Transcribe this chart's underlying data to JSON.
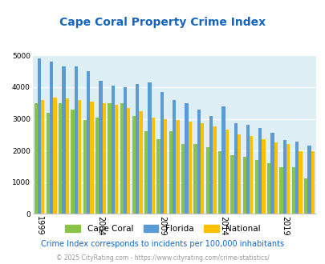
{
  "title": "Cape Coral Property Crime Index",
  "years": [
    1999,
    2000,
    2001,
    2002,
    2003,
    2004,
    2005,
    2006,
    2007,
    2008,
    2009,
    2010,
    2011,
    2012,
    2013,
    2014,
    2015,
    2016,
    2017,
    2018,
    2019,
    2020,
    2021
  ],
  "cape_coral": [
    3500,
    3200,
    3500,
    3300,
    2950,
    3050,
    3500,
    3500,
    3100,
    2600,
    2350,
    2600,
    2200,
    2200,
    2100,
    1980,
    1850,
    1800,
    1700,
    1600,
    1480,
    1470,
    1120
  ],
  "florida": [
    4900,
    4800,
    4650,
    4650,
    4500,
    4200,
    4050,
    4000,
    4100,
    4150,
    3850,
    3600,
    3500,
    3300,
    3100,
    3400,
    2850,
    2800,
    2700,
    2550,
    2320,
    2290,
    2150
  ],
  "national": [
    3600,
    3670,
    3650,
    3600,
    3550,
    3480,
    3450,
    3340,
    3250,
    3050,
    3000,
    2960,
    2900,
    2860,
    2750,
    2650,
    2500,
    2460,
    2360,
    2250,
    2200,
    1980,
    1970
  ],
  "colors": {
    "cape_coral": "#8bc34a",
    "florida": "#5b9bd5",
    "national": "#ffc000"
  },
  "ylim": [
    0,
    5000
  ],
  "yticks": [
    0,
    1000,
    2000,
    3000,
    4000,
    5000
  ],
  "xtick_years": [
    1999,
    2004,
    2009,
    2014,
    2019
  ],
  "legend_labels": [
    "Cape Coral",
    "Florida",
    "National"
  ],
  "footnote1": "Crime Index corresponds to incidents per 100,000 inhabitants",
  "footnote2": "© 2025 CityRating.com - https://www.cityrating.com/crime-statistics/",
  "plot_bg": "#deeef5",
  "title_color": "#1565c0",
  "footnote1_color": "#1565c0",
  "footnote2_color": "#999999"
}
